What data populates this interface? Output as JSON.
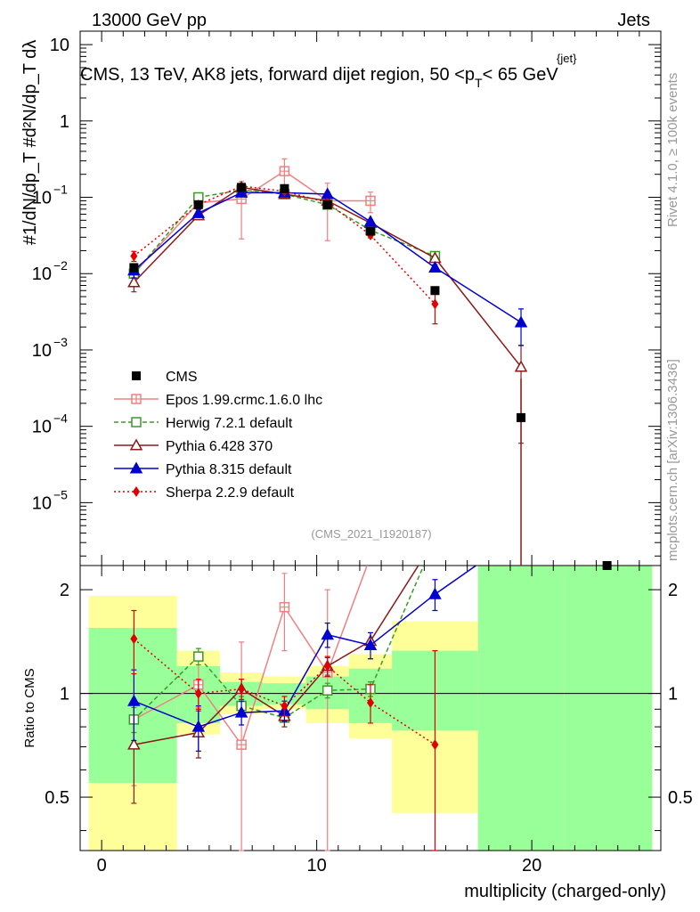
{
  "header": {
    "left": "13000 GeV pp",
    "right": "Jets"
  },
  "chart_data": {
    "type": "line",
    "title": "CMS, 13 TeV, AK8 jets, forward dijet region, 50 <p",
    "title_sup": "{jet}",
    "title_sub": "T",
    "title_tail": "< 65 GeV",
    "ylabel_main": "#1/dN/dp_T #d²N/dp_T dλ",
    "ylabel_ratio": "Ratio to CMS",
    "xlabel": "multiplicity (charged-only)",
    "watermark": "(CMS_2021_I1920187)",
    "side_label_1": "Rivet 4.1.0, ≥ 100k events",
    "side_label_2": "mcplots.cern.ch [arXiv:1306.3436]",
    "xlim": [
      -1,
      26
    ],
    "ylim_main": [
      1.5e-06,
      15
    ],
    "ylim_ratio": [
      0.35,
      2.35
    ],
    "x_ticks": [
      0,
      10,
      20
    ],
    "y_ticks_main": [
      {
        "v": 10,
        "label": "10"
      },
      {
        "v": 1,
        "label": "1"
      },
      {
        "v": 0.1,
        "label": "10",
        "exp": "−1"
      },
      {
        "v": 0.01,
        "label": "10",
        "exp": "−2"
      },
      {
        "v": 0.001,
        "label": "10",
        "exp": "−3"
      },
      {
        "v": 0.0001,
        "label": "10",
        "exp": "−4"
      },
      {
        "v": 1e-05,
        "label": "10",
        "exp": "−5"
      }
    ],
    "y_ticks_ratio": [
      {
        "v": 2,
        "label": "2"
      },
      {
        "v": 1,
        "label": "1"
      },
      {
        "v": 0.5,
        "label": "0.5"
      }
    ],
    "bands": [
      {
        "x0": -0.6,
        "x1": 3.5,
        "g0": 0.55,
        "g1": 1.55,
        "y0": 0.35,
        "y1": 1.92
      },
      {
        "x0": 3.5,
        "x1": 5.5,
        "g0": 0.82,
        "g1": 1.2,
        "y0": 0.76,
        "y1": 1.33
      },
      {
        "x0": 5.5,
        "x1": 7.5,
        "g0": 0.92,
        "g1": 1.08,
        "y0": 0.87,
        "y1": 1.15
      },
      {
        "x0": 7.5,
        "x1": 9.5,
        "g0": 0.93,
        "g1": 1.07,
        "y0": 0.9,
        "y1": 1.12
      },
      {
        "x0": 9.5,
        "x1": 11.5,
        "g0": 0.9,
        "g1": 1.12,
        "y0": 0.82,
        "y1": 1.2
      },
      {
        "x0": 11.5,
        "x1": 13.5,
        "g0": 0.82,
        "g1": 1.18,
        "y0": 0.74,
        "y1": 1.3
      },
      {
        "x0": 13.5,
        "x1": 17.5,
        "g0": 0.78,
        "g1": 1.33,
        "y0": 0.45,
        "y1": 1.62
      },
      {
        "x0": 17.5,
        "x1": 21.5,
        "g0": 0.35,
        "g1": 2.35,
        "y0": 0.35,
        "y1": 2.35
      },
      {
        "x0": 21.5,
        "x1": 25.6,
        "g0": 0.35,
        "g1": 2.35,
        "y0": 0.35,
        "y1": 2.35
      }
    ],
    "cms": [
      {
        "x": 1.5,
        "y": 0.012
      },
      {
        "x": 4.5,
        "y": 0.08
      },
      {
        "x": 6.5,
        "y": 0.135
      },
      {
        "x": 8.5,
        "y": 0.13
      },
      {
        "x": 10.5,
        "y": 0.08
      },
      {
        "x": 12.5,
        "y": 0.036
      },
      {
        "x": 15.5,
        "y": 0.006
      },
      {
        "x": 19.5,
        "y": 0.00013
      },
      {
        "x": 23.5,
        "y": 1.5e-06
      }
    ],
    "series": [
      {
        "name": "Epos 1.99.crmc.1.6.0 lhc",
        "color": "#f08080",
        "dash": "",
        "marker": "cross-square",
        "x": [
          1.5,
          4.5,
          6.5,
          8.5,
          10.5,
          12.5
        ],
        "y": [
          0.01,
          0.085,
          0.095,
          0.22,
          0.09,
          0.09
        ],
        "err": [
          0.3,
          0.15,
          0.7,
          0.45,
          0.7,
          0.3
        ],
        "ratio": [
          0.84,
          1.06,
          0.71,
          1.78,
          1.15,
          2.5
        ],
        "ratio_err": [
          0.3,
          0.15,
          0.7,
          0.45,
          0.85,
          0.3
        ]
      },
      {
        "name": "Herwig 7.2.1 default",
        "color": "#3c9a28",
        "dash": "5,3",
        "marker": "open-square",
        "x": [
          1.5,
          4.5,
          6.5,
          8.5,
          10.5,
          12.5,
          15.5
        ],
        "y": [
          0.01,
          0.1,
          0.125,
          0.11,
          0.08,
          0.037,
          0.017
        ],
        "err": [
          0.1,
          0.07,
          0.05,
          0.05,
          0.05,
          0.06,
          0.05
        ],
        "ratio": [
          0.84,
          1.28,
          0.92,
          0.85,
          1.02,
          1.03,
          2.8
        ],
        "ratio_err": [
          0.07,
          0.07,
          0.06,
          0.05,
          0.05,
          0.05,
          0.05
        ]
      },
      {
        "name": "Pythia 6.428 370",
        "color": "#8b1a1a",
        "dash": "",
        "marker": "open-triangle",
        "x": [
          1.5,
          4.5,
          6.5,
          8.5,
          10.5,
          12.5,
          15.5,
          19.5
        ],
        "y": [
          0.0077,
          0.058,
          0.135,
          0.11,
          0.09,
          0.046,
          0.016,
          0.0006
        ],
        "err": [
          0.25,
          0.12,
          0.06,
          0.06,
          0.06,
          0.06,
          0.06,
          0.9
        ],
        "ratio": [
          0.71,
          0.77,
          1.03,
          0.86,
          1.2,
          1.42,
          2.8,
          4.5
        ],
        "ratio_err": [
          0.23,
          0.12,
          0.07,
          0.06,
          0.07,
          0.08,
          0.1,
          0.6
        ]
      },
      {
        "name": "Pythia 8.315 default",
        "color": "#0000d0",
        "dash": "",
        "marker": "filled-triangle",
        "x": [
          1.5,
          4.5,
          6.5,
          8.5,
          10.5,
          12.5,
          15.5,
          19.5
        ],
        "y": [
          0.011,
          0.062,
          0.115,
          0.115,
          0.11,
          0.048,
          0.012,
          0.0023
        ],
        "err": [
          0.2,
          0.12,
          0.07,
          0.06,
          0.06,
          0.06,
          0.09,
          0.5
        ],
        "ratio": [
          0.95,
          0.8,
          0.88,
          0.89,
          1.48,
          1.38,
          1.94,
          2.9
        ],
        "ratio_err": [
          0.22,
          0.12,
          0.07,
          0.06,
          0.12,
          0.12,
          0.2,
          0.4
        ]
      },
      {
        "name": "Sherpa 2.2.9 default",
        "color": "#e00000",
        "dash": "2,3",
        "marker": "filled-diamond",
        "x": [
          1.5,
          4.5,
          6.5,
          8.5,
          10.5,
          12.5,
          15.5
        ],
        "y": [
          0.017,
          0.08,
          0.14,
          0.12,
          0.085,
          0.032,
          0.004
        ],
        "err": [
          0.15,
          0.08,
          0.06,
          0.06,
          0.06,
          0.08,
          0.45
        ],
        "ratio": [
          1.44,
          1.0,
          1.03,
          0.92,
          1.2,
          0.94,
          0.71
        ],
        "ratio_err": [
          0.3,
          0.1,
          0.07,
          0.06,
          0.08,
          0.12,
          0.62
        ]
      }
    ],
    "legend": [
      {
        "label": "CMS",
        "marker": "filled-square",
        "color": "#000000",
        "dash": ""
      },
      {
        "label": "Epos 1.99.crmc.1.6.0 lhc",
        "marker": "cross-square",
        "color": "#f08080",
        "dash": ""
      },
      {
        "label": "Herwig 7.2.1 default",
        "marker": "open-square",
        "color": "#3c9a28",
        "dash": "5,3"
      },
      {
        "label": "Pythia 6.428 370",
        "marker": "open-triangle",
        "color": "#8b1a1a",
        "dash": ""
      },
      {
        "label": "Pythia 8.315 default",
        "marker": "filled-triangle",
        "color": "#0000d0",
        "dash": ""
      },
      {
        "label": "Sherpa 2.2.9 default",
        "marker": "filled-diamond",
        "color": "#e00000",
        "dash": "2,3"
      }
    ],
    "band_colors": {
      "green": "#99ff99",
      "yellow": "#ffff99"
    }
  }
}
